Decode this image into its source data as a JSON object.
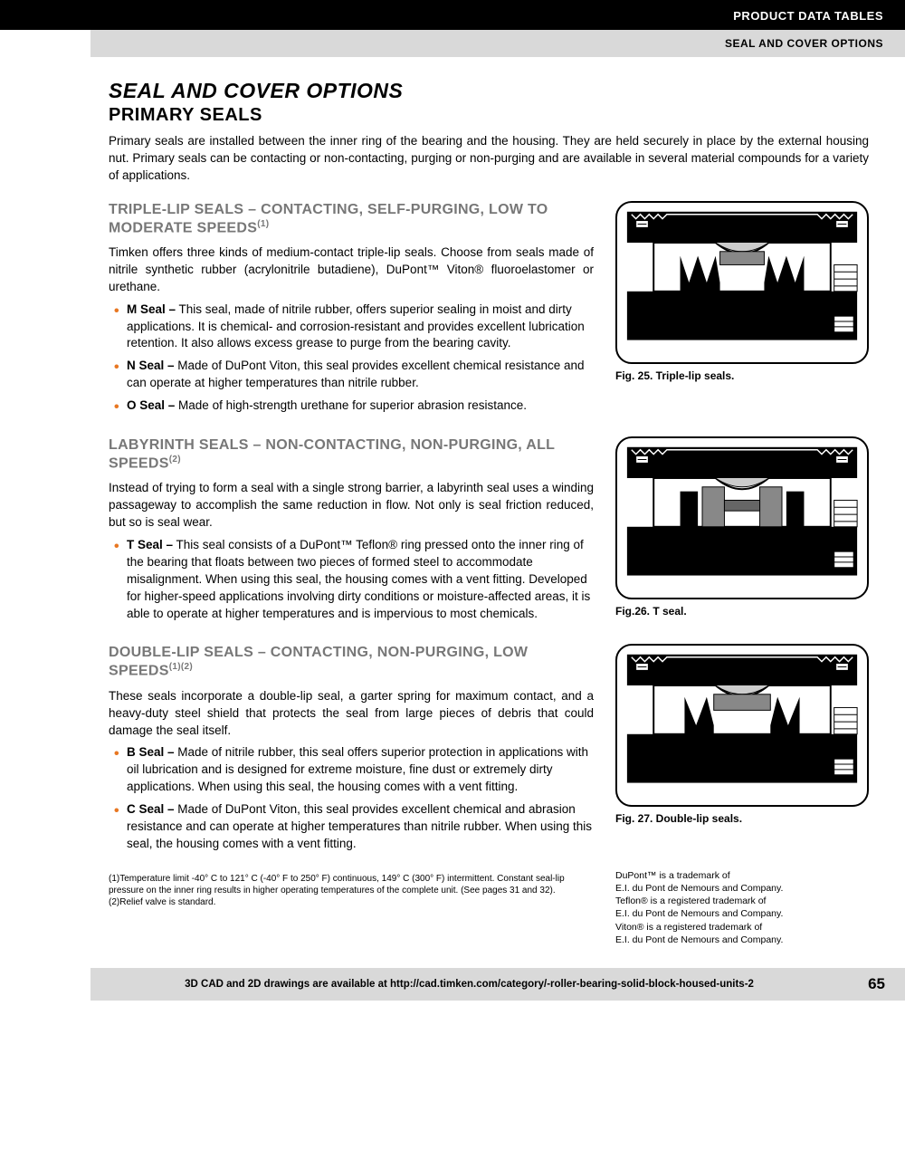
{
  "header": {
    "line1": "PRODUCT DATA TABLES",
    "line2": "SEAL AND COVER OPTIONS"
  },
  "pageTitle": "SEAL AND COVER OPTIONS",
  "subtitle": "PRIMARY SEALS",
  "intro": "Primary seals are installed between the inner ring of the bearing and the housing. They are held securely in place by the external housing nut. Primary seals can be contacting or non-contacting, purging or non-purging and are available in several material compounds for a variety of applications.",
  "sections": [
    {
      "heading": "TRIPLE-LIP SEALS – CONTACTING, SELF-PURGING, LOW TO MODERATE SPEEDS",
      "sup": "(1)",
      "para": "Timken offers three kinds of medium-contact triple-lip seals. Choose from seals made of nitrile synthetic rubber (acrylonitrile butadiene), DuPont™ Viton® fluoroelastomer or urethane.",
      "bullets": [
        {
          "b": "M Seal –",
          "t": " This seal, made of nitrile rubber, offers superior sealing in moist and dirty applications. It is chemical- and corrosion-resistant and provides excellent lubrication retention. It also allows excess grease to purge from the bearing cavity."
        },
        {
          "b": "N Seal –",
          "t": " Made of DuPont Viton, this seal provides excellent chemical resistance and can operate at higher temperatures than nitrile rubber."
        },
        {
          "b": "O Seal –",
          "t": " Made of high-strength urethane for superior abrasion resistance."
        }
      ],
      "figCaption": "Fig. 25. Triple-lip seals."
    },
    {
      "heading": "LABYRINTH SEALS – NON-CONTACTING, NON-PURGING, ALL SPEEDS",
      "sup": "(2)",
      "para": "Instead of trying to form a seal with a single strong barrier, a labyrinth seal uses a winding passageway to accomplish the same reduction in flow. Not only is seal friction reduced, but so is seal wear.",
      "bullets": [
        {
          "b": "T Seal –",
          "t": " This seal consists of a DuPont™ Teflon® ring pressed onto the inner ring of the bearing that floats between two pieces of formed steel to accommodate misalignment. When using this seal, the housing comes with a vent fitting. Developed for higher-speed applications involving dirty conditions or moisture-affected areas, it is able to operate at higher temperatures and is impervious to most chemicals."
        }
      ],
      "figCaption": "Fig.26. T seal."
    },
    {
      "heading": "DOUBLE-LIP SEALS – CONTACTING, NON-PURGING, LOW SPEEDS",
      "sup": "(1)(2)",
      "para": "These seals incorporate a double-lip seal, a garter spring for maximum contact, and a heavy-duty steel shield that protects the seal from large pieces of debris that could damage the seal itself.",
      "bullets": [
        {
          "b": "B Seal –",
          "t": " Made of nitrile rubber, this seal offers superior protection in applications with oil lubrication and is designed for extreme moisture, fine dust or extremely dirty applications. When using this seal, the housing comes with a vent fitting."
        },
        {
          "b": "C Seal –",
          "t": " Made of DuPont Viton, this seal provides excellent chemical and abrasion resistance and can operate at higher temperatures than nitrile rubber. When using this seal, the housing comes with a vent fitting."
        }
      ],
      "figCaption": "Fig. 27. Double-lip seals."
    }
  ],
  "footnotes": {
    "f1": "(1)Temperature limit -40° C to 121° C (-40° F to 250° F) continuous, 149° C (300° F) intermittent. Constant seal-lip pressure on the inner ring results in higher operating temperatures of the complete unit. (See pages 31 and 32).",
    "f2": "(2)Relief valve is standard."
  },
  "trademark": "DuPont™ is a trademark of\nE.I. du Pont de Nemours and Company.\nTeflon® is a registered trademark of\nE.I. du Pont de Nemours and Company.\nViton® is a registered trademark of\nE.I. du Pont de Nemours and Company.",
  "footer": {
    "text": "3D CAD and 2D drawings are available at http://cad.timken.com/category/-roller-bearing-solid-block-housed-units-2",
    "page": "65"
  }
}
